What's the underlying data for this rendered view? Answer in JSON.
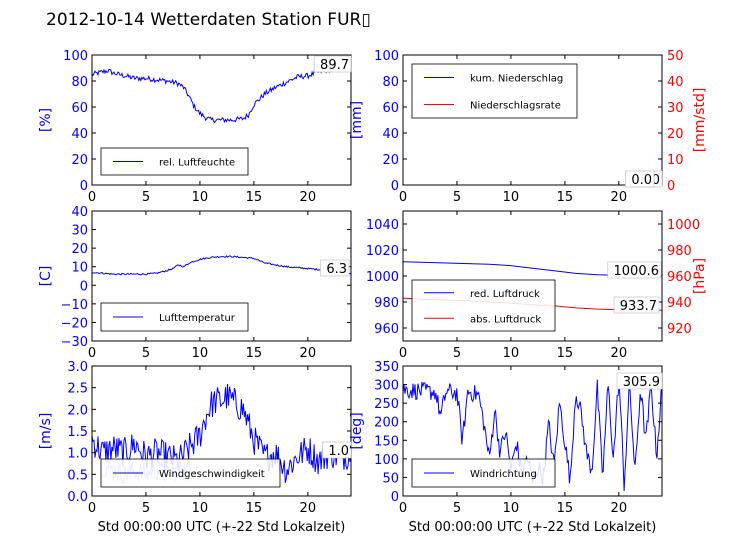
{
  "figure": {
    "title": "2012-10-14 Wetterdaten Station FUR▯",
    "xlabel": "Std 00:00:00 UTC (+-22 Std Lokalzeit)"
  },
  "colors": {
    "primary": "#0000ff",
    "secondary": "#ff0000",
    "dark_red": "#8b0000",
    "light_blue": "#8080ff"
  },
  "chart_data": [
    {
      "id": "humidity",
      "type": "line",
      "ylabel": "[%]",
      "xlim": [
        0,
        24
      ],
      "ylim": [
        0,
        100
      ],
      "xticks": [
        "0",
        "5",
        "10",
        "15",
        "20"
      ],
      "yticks": [
        "0",
        "20",
        "40",
        "60",
        "80",
        "100"
      ],
      "current_value": "89.7",
      "legend": {
        "placement": "lower-left"
      },
      "series": [
        {
          "name": "rel. Luftfeuchte",
          "color": "#0000ff",
          "noise": 2,
          "x": [
            0,
            1,
            1.5,
            2,
            3,
            4,
            5,
            6,
            7,
            8,
            8.5,
            9,
            9.5,
            10,
            10.5,
            11,
            12,
            13,
            14,
            14.5,
            15,
            16,
            17,
            18,
            19,
            20,
            21,
            22,
            23,
            24
          ],
          "y": [
            85,
            87,
            88,
            86,
            84,
            82,
            82,
            81,
            80,
            78,
            75,
            68,
            60,
            55,
            52,
            50,
            50,
            50,
            51,
            54,
            62,
            70,
            75,
            79,
            83,
            84,
            87,
            89,
            90,
            90
          ]
        }
      ]
    },
    {
      "id": "precip",
      "type": "line",
      "ylabel": "[mm]",
      "ylabel2": "[mm/std]",
      "xlim": [
        0,
        24
      ],
      "ylim": [
        0,
        100
      ],
      "ylim2": [
        0,
        50
      ],
      "xticks": [
        "0",
        "5",
        "10",
        "15",
        "20"
      ],
      "yticks": [
        "0",
        "20",
        "40",
        "60",
        "80",
        "100"
      ],
      "yticks2": [
        "0",
        "10",
        "20",
        "30",
        "40",
        "50"
      ],
      "current_value": "0.0",
      "current_value2": "0.0",
      "legend": {
        "placement": "upper-left"
      },
      "series": [
        {
          "name": "kum. Niederschlag",
          "color": "#0000ff",
          "x": [
            0,
            24
          ],
          "y": [
            0,
            0
          ]
        },
        {
          "name": "Niederschlagsrate",
          "color": "#ff0000",
          "axis": "right",
          "x": [
            0,
            24
          ],
          "y": [
            0,
            0
          ]
        }
      ]
    },
    {
      "id": "temperature",
      "type": "line",
      "ylabel": "[C]",
      "xlim": [
        0,
        24
      ],
      "ylim": [
        -30,
        40
      ],
      "xticks": [
        "0",
        "5",
        "10",
        "15",
        "20"
      ],
      "yticks": [
        "−30",
        "−20",
        "−10",
        "0",
        "10",
        "20",
        "30",
        "40"
      ],
      "current_value": "6.3",
      "legend": {
        "placement": "lower-left"
      },
      "series": [
        {
          "name": "Lufttemperatur",
          "color": "#0000ff",
          "noise": 0.4,
          "x": [
            0,
            1,
            2,
            3,
            4,
            5,
            6,
            7,
            7.5,
            8,
            8.5,
            9,
            10,
            11,
            12,
            13,
            14,
            15,
            16,
            17,
            18,
            19,
            20,
            21,
            22,
            23,
            24
          ],
          "y": [
            7,
            6.5,
            6,
            6,
            6,
            6,
            6.5,
            8,
            9,
            11,
            10,
            12,
            14,
            15,
            15.5,
            15.5,
            15,
            14.5,
            12,
            11,
            10,
            9.5,
            9,
            8.5,
            7.5,
            6.5,
            6.3
          ]
        }
      ]
    },
    {
      "id": "pressure",
      "type": "line",
      "ylabel2": "[hPa]",
      "xlim": [
        0,
        24
      ],
      "ylim": [
        950,
        1050
      ],
      "ylim2": [
        910,
        1010
      ],
      "xticks": [
        "0",
        "5",
        "10",
        "15",
        "20"
      ],
      "yticks": [
        "960",
        "980",
        "1000",
        "1020",
        "1040"
      ],
      "yticks2": [
        "920",
        "940",
        "960",
        "980",
        "1000"
      ],
      "current_value": "1000.6",
      "current_value2": "933.7",
      "legend": {
        "placement": "lower-left"
      },
      "series": [
        {
          "name": "red. Luftdruck",
          "color": "#0000ff",
          "x": [
            0,
            2,
            4,
            6,
            8,
            10,
            12,
            14,
            16,
            18,
            20,
            22,
            24
          ],
          "y": [
            1011,
            1010.5,
            1010,
            1009.5,
            1009,
            1008,
            1006,
            1004,
            1002,
            1001,
            1000.5,
            1000.6,
            1000.6
          ]
        },
        {
          "name": "abs. Luftdruck",
          "color": "#ff0000",
          "axis": "right",
          "x": [
            0,
            2,
            4,
            6,
            8,
            10,
            12,
            14,
            16,
            18,
            20,
            22,
            24
          ],
          "y": [
            943,
            942,
            941.5,
            941,
            940,
            939,
            938,
            937,
            935.5,
            934.5,
            934,
            933.7,
            933.7
          ]
        }
      ]
    },
    {
      "id": "wind_speed",
      "type": "line",
      "ylabel": "[m/s]",
      "xlabel": "Std 00:00:00 UTC (+-22 Std Lokalzeit)",
      "xlim": [
        0,
        24
      ],
      "ylim": [
        0,
        3
      ],
      "xticks": [
        "0",
        "5",
        "10",
        "15",
        "20"
      ],
      "yticks": [
        "0.0",
        "0.5",
        "1.0",
        "1.5",
        "2.0",
        "2.5",
        "3.0"
      ],
      "current_value": "1.0",
      "legend": {
        "placement": "lower-center"
      },
      "series": [
        {
          "name": "Windgeschwindigkeit",
          "color": "#0000ff",
          "noise": 0.35,
          "x": [
            0,
            1,
            2,
            3,
            4,
            5,
            6,
            7,
            8,
            9,
            10,
            10.5,
            11,
            11.5,
            12,
            12.5,
            13,
            13.5,
            14,
            15,
            16,
            17,
            18,
            19,
            20,
            21,
            22,
            23,
            24
          ],
          "y": [
            1.3,
            1.0,
            1.1,
            1.0,
            1.2,
            0.9,
            1.0,
            0.9,
            0.8,
            1.1,
            1.4,
            1.8,
            2.1,
            2.2,
            2.2,
            2.3,
            2.2,
            2.1,
            2.0,
            1.3,
            0.9,
            1.0,
            0.6,
            0.9,
            1.1,
            0.8,
            1.0,
            0.9,
            1.0
          ]
        },
        {
          "color": "#8080ff",
          "noise": 0.25,
          "x": [
            1,
            2,
            3,
            4,
            5,
            6,
            7,
            8,
            9,
            9.8
          ],
          "y": [
            0.7,
            0.6,
            0.5,
            0.6,
            0.5,
            0.6,
            0.5,
            0.6,
            0.6,
            0.7
          ]
        }
      ]
    },
    {
      "id": "wind_direction",
      "type": "line",
      "ylabel": "[deg]",
      "xlabel": "Std 00:00:00 UTC (+-22 Std Lokalzeit)",
      "xlim": [
        0,
        24
      ],
      "ylim": [
        0,
        360
      ],
      "xticks": [
        "0",
        "5",
        "10",
        "15",
        "20"
      ],
      "yticks": [
        "0",
        "50",
        "100",
        "150",
        "200",
        "250",
        "300",
        "350"
      ],
      "current_value": "305.9",
      "legend": {
        "placement": "lower-left"
      },
      "series": [
        {
          "name": "Windrichtung",
          "color": "#0000ff",
          "noise": 25,
          "x": [
            0,
            1,
            2,
            3,
            3.5,
            4,
            5,
            5.5,
            6,
            7,
            7.5,
            8,
            8.5,
            9,
            9.5,
            10,
            10.5,
            11,
            11.5,
            12,
            12.5,
            13,
            13.5,
            14,
            14.5,
            15,
            15.5,
            16,
            16.5,
            17,
            17.5,
            18,
            18.5,
            19,
            19.5,
            20,
            20.5,
            21,
            21.5,
            22,
            22.5,
            23,
            23.5,
            24
          ],
          "y": [
            295,
            292,
            290,
            288,
            220,
            290,
            285,
            150,
            290,
            280,
            200,
            100,
            240,
            120,
            180,
            70,
            150,
            60,
            110,
            40,
            80,
            50,
            200,
            80,
            260,
            150,
            40,
            290,
            230,
            120,
            70,
            300,
            50,
            310,
            100,
            330,
            30,
            310,
            60,
            300,
            150,
            310,
            110,
            305
          ]
        }
      ]
    }
  ]
}
